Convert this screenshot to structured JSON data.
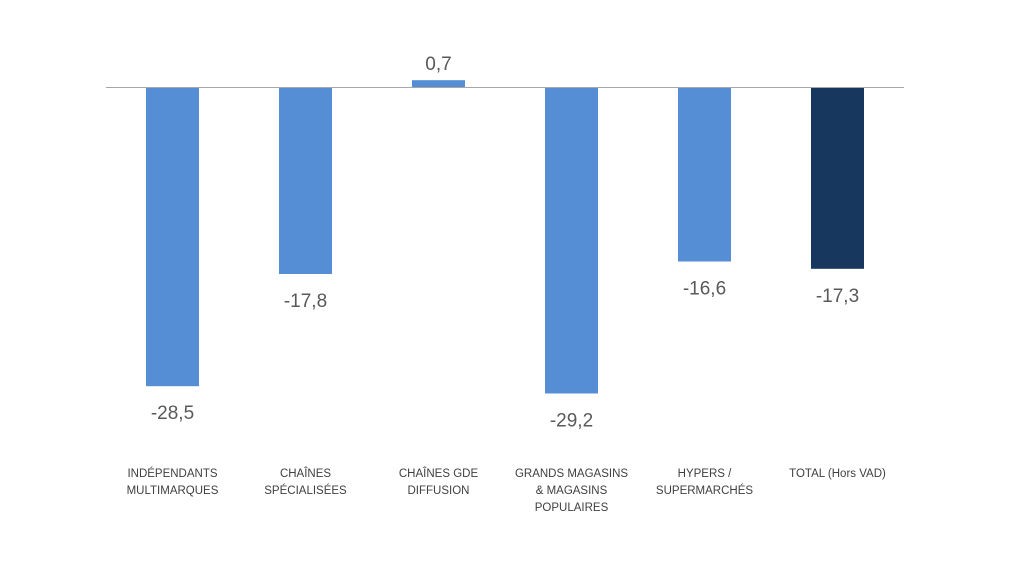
{
  "chart_data": {
    "type": "bar",
    "categories": [
      [
        "INDÉPENDANTS",
        "MULTIMARQUES"
      ],
      [
        "CHAÎNES",
        "SPÉCIALISÉES"
      ],
      [
        "CHAÎNES GDE",
        "DIFFUSION"
      ],
      [
        "GRANDS MAGASINS",
        "& MAGASINS",
        "POPULAIRES"
      ],
      [
        "HYPERS /",
        "SUPERMARCHÉS"
      ],
      [
        "TOTAL (Hors VAD)"
      ]
    ],
    "values": [
      -28.5,
      -17.8,
      0.7,
      -29.2,
      -16.6,
      -17.3
    ],
    "value_labels": [
      "-28,5",
      "-17,8",
      "0,7",
      "-29,2",
      "-16,6",
      "-17,3"
    ],
    "title": "",
    "xlabel": "",
    "ylabel": "",
    "ylim": [
      -30,
      0.7
    ],
    "grid": false,
    "legend": "none",
    "colors": {
      "bar": "#558ed5",
      "highlight": "#17375e",
      "axis": "#a6a6a6"
    },
    "highlight_index": 5
  }
}
